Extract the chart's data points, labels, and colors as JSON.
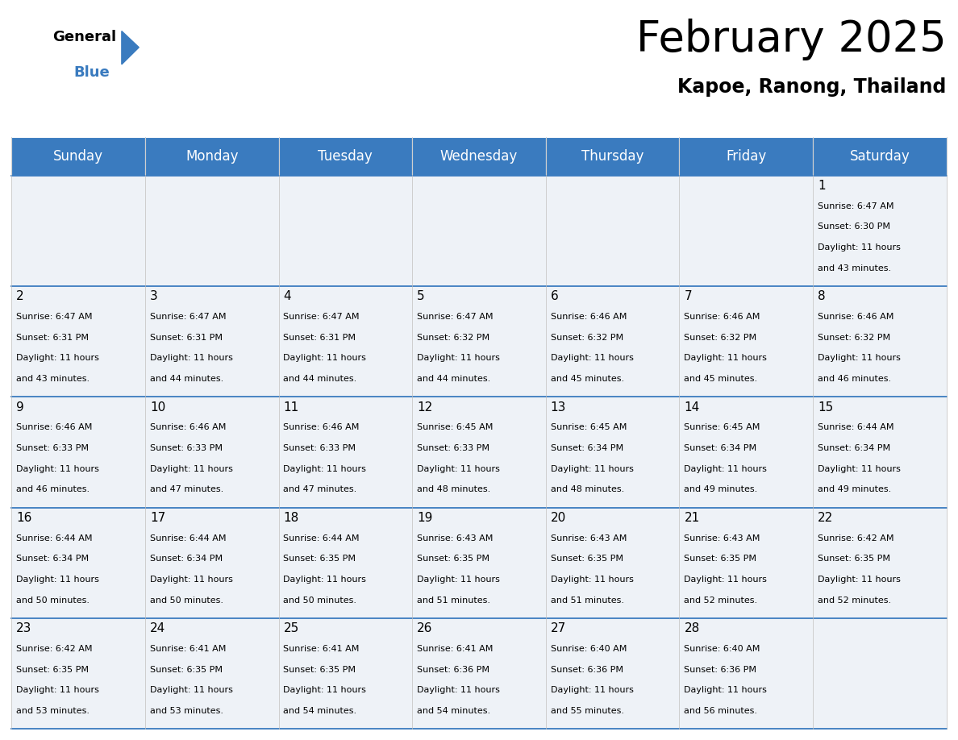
{
  "title": "February 2025",
  "subtitle": "Kapoe, Ranong, Thailand",
  "header_color": "#3a7bbf",
  "header_text_color": "#ffffff",
  "cell_bg_color": "#eef2f7",
  "border_color": "#3a7bbf",
  "day_headers": [
    "Sunday",
    "Monday",
    "Tuesday",
    "Wednesday",
    "Thursday",
    "Friday",
    "Saturday"
  ],
  "title_fontsize": 38,
  "subtitle_fontsize": 17,
  "header_fontsize": 12,
  "day_num_fontsize": 11,
  "info_fontsize": 8,
  "days": [
    {
      "day": 1,
      "col": 6,
      "row": 0,
      "sunrise": "6:47 AM",
      "sunset": "6:30 PM",
      "daylight_hours": 11,
      "daylight_mins": 43
    },
    {
      "day": 2,
      "col": 0,
      "row": 1,
      "sunrise": "6:47 AM",
      "sunset": "6:31 PM",
      "daylight_hours": 11,
      "daylight_mins": 43
    },
    {
      "day": 3,
      "col": 1,
      "row": 1,
      "sunrise": "6:47 AM",
      "sunset": "6:31 PM",
      "daylight_hours": 11,
      "daylight_mins": 44
    },
    {
      "day": 4,
      "col": 2,
      "row": 1,
      "sunrise": "6:47 AM",
      "sunset": "6:31 PM",
      "daylight_hours": 11,
      "daylight_mins": 44
    },
    {
      "day": 5,
      "col": 3,
      "row": 1,
      "sunrise": "6:47 AM",
      "sunset": "6:32 PM",
      "daylight_hours": 11,
      "daylight_mins": 44
    },
    {
      "day": 6,
      "col": 4,
      "row": 1,
      "sunrise": "6:46 AM",
      "sunset": "6:32 PM",
      "daylight_hours": 11,
      "daylight_mins": 45
    },
    {
      "day": 7,
      "col": 5,
      "row": 1,
      "sunrise": "6:46 AM",
      "sunset": "6:32 PM",
      "daylight_hours": 11,
      "daylight_mins": 45
    },
    {
      "day": 8,
      "col": 6,
      "row": 1,
      "sunrise": "6:46 AM",
      "sunset": "6:32 PM",
      "daylight_hours": 11,
      "daylight_mins": 46
    },
    {
      "day": 9,
      "col": 0,
      "row": 2,
      "sunrise": "6:46 AM",
      "sunset": "6:33 PM",
      "daylight_hours": 11,
      "daylight_mins": 46
    },
    {
      "day": 10,
      "col": 1,
      "row": 2,
      "sunrise": "6:46 AM",
      "sunset": "6:33 PM",
      "daylight_hours": 11,
      "daylight_mins": 47
    },
    {
      "day": 11,
      "col": 2,
      "row": 2,
      "sunrise": "6:46 AM",
      "sunset": "6:33 PM",
      "daylight_hours": 11,
      "daylight_mins": 47
    },
    {
      "day": 12,
      "col": 3,
      "row": 2,
      "sunrise": "6:45 AM",
      "sunset": "6:33 PM",
      "daylight_hours": 11,
      "daylight_mins": 48
    },
    {
      "day": 13,
      "col": 4,
      "row": 2,
      "sunrise": "6:45 AM",
      "sunset": "6:34 PM",
      "daylight_hours": 11,
      "daylight_mins": 48
    },
    {
      "day": 14,
      "col": 5,
      "row": 2,
      "sunrise": "6:45 AM",
      "sunset": "6:34 PM",
      "daylight_hours": 11,
      "daylight_mins": 49
    },
    {
      "day": 15,
      "col": 6,
      "row": 2,
      "sunrise": "6:44 AM",
      "sunset": "6:34 PM",
      "daylight_hours": 11,
      "daylight_mins": 49
    },
    {
      "day": 16,
      "col": 0,
      "row": 3,
      "sunrise": "6:44 AM",
      "sunset": "6:34 PM",
      "daylight_hours": 11,
      "daylight_mins": 50
    },
    {
      "day": 17,
      "col": 1,
      "row": 3,
      "sunrise": "6:44 AM",
      "sunset": "6:34 PM",
      "daylight_hours": 11,
      "daylight_mins": 50
    },
    {
      "day": 18,
      "col": 2,
      "row": 3,
      "sunrise": "6:44 AM",
      "sunset": "6:35 PM",
      "daylight_hours": 11,
      "daylight_mins": 50
    },
    {
      "day": 19,
      "col": 3,
      "row": 3,
      "sunrise": "6:43 AM",
      "sunset": "6:35 PM",
      "daylight_hours": 11,
      "daylight_mins": 51
    },
    {
      "day": 20,
      "col": 4,
      "row": 3,
      "sunrise": "6:43 AM",
      "sunset": "6:35 PM",
      "daylight_hours": 11,
      "daylight_mins": 51
    },
    {
      "day": 21,
      "col": 5,
      "row": 3,
      "sunrise": "6:43 AM",
      "sunset": "6:35 PM",
      "daylight_hours": 11,
      "daylight_mins": 52
    },
    {
      "day": 22,
      "col": 6,
      "row": 3,
      "sunrise": "6:42 AM",
      "sunset": "6:35 PM",
      "daylight_hours": 11,
      "daylight_mins": 52
    },
    {
      "day": 23,
      "col": 0,
      "row": 4,
      "sunrise": "6:42 AM",
      "sunset": "6:35 PM",
      "daylight_hours": 11,
      "daylight_mins": 53
    },
    {
      "day": 24,
      "col": 1,
      "row": 4,
      "sunrise": "6:41 AM",
      "sunset": "6:35 PM",
      "daylight_hours": 11,
      "daylight_mins": 53
    },
    {
      "day": 25,
      "col": 2,
      "row": 4,
      "sunrise": "6:41 AM",
      "sunset": "6:35 PM",
      "daylight_hours": 11,
      "daylight_mins": 54
    },
    {
      "day": 26,
      "col": 3,
      "row": 4,
      "sunrise": "6:41 AM",
      "sunset": "6:36 PM",
      "daylight_hours": 11,
      "daylight_mins": 54
    },
    {
      "day": 27,
      "col": 4,
      "row": 4,
      "sunrise": "6:40 AM",
      "sunset": "6:36 PM",
      "daylight_hours": 11,
      "daylight_mins": 55
    },
    {
      "day": 28,
      "col": 5,
      "row": 4,
      "sunrise": "6:40 AM",
      "sunset": "6:36 PM",
      "daylight_hours": 11,
      "daylight_mins": 56
    }
  ]
}
